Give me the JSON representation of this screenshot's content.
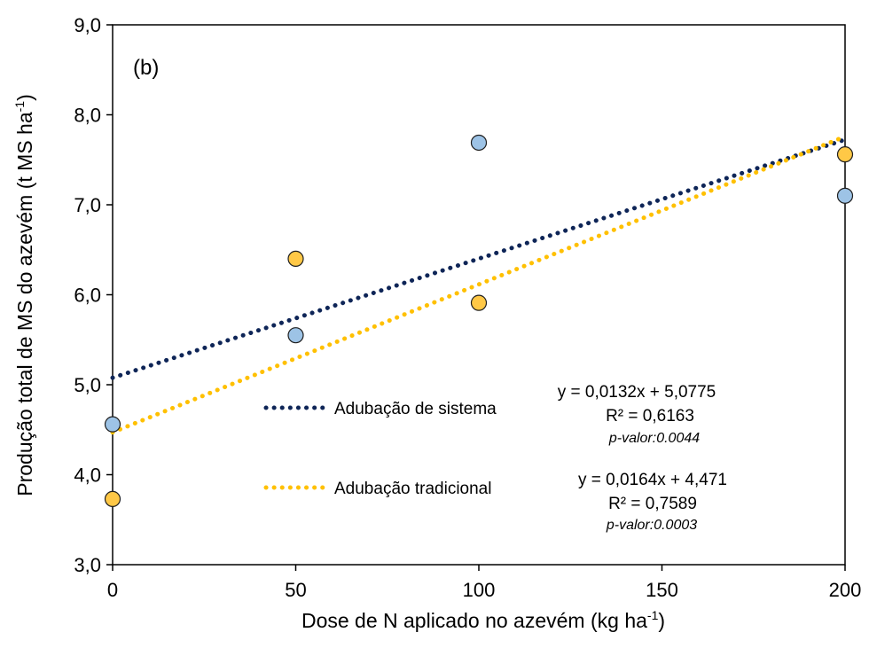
{
  "chart_data": {
    "type": "scatter",
    "panel_label": "(b)",
    "xlabel": "Dose de N aplicado no azevém (kg ha",
    "xlabel_sup": "-1",
    "xlabel_end": ")",
    "ylabel": "Produção total de MS do azevém (t MS ha",
    "ylabel_sup": "-1",
    "ylabel_end": ")",
    "xlim": [
      0,
      200
    ],
    "ylim": [
      3,
      9
    ],
    "x_ticks": [
      0,
      50,
      100,
      150,
      200
    ],
    "x_tick_labels": [
      "0",
      "50",
      "100",
      "150",
      "200"
    ],
    "y_ticks": [
      3,
      4,
      5,
      6,
      7,
      8,
      9
    ],
    "y_tick_labels": [
      "3,0",
      "4,0",
      "5,0",
      "6,0",
      "7,0",
      "8,0",
      "9,0"
    ],
    "grid": false,
    "series": [
      {
        "name": "Adubação de sistema",
        "marker_color": "#9dc3e6",
        "line_color": "#0e2557",
        "x": [
          0,
          50,
          100,
          200
        ],
        "y": [
          4.56,
          5.55,
          7.69,
          7.1
        ],
        "trend": {
          "slope": 0.0132,
          "intercept": 5.0775,
          "equation": "y = 0,0132x + 5,0775",
          "r2": "R² = 0,6163",
          "pvalue": "p-valor:0.0044"
        }
      },
      {
        "name": "Adubação tradicional",
        "marker_color": "#ffc846",
        "line_color": "#ffc000",
        "x": [
          0,
          50,
          100,
          200
        ],
        "y": [
          3.73,
          6.4,
          5.91,
          7.56
        ],
        "trend": {
          "slope": 0.0164,
          "intercept": 4.471,
          "equation": "y = 0,0164x + 4,471",
          "r2": "R² = 0,7589",
          "pvalue": "p-valor:0.0003"
        }
      }
    ]
  }
}
